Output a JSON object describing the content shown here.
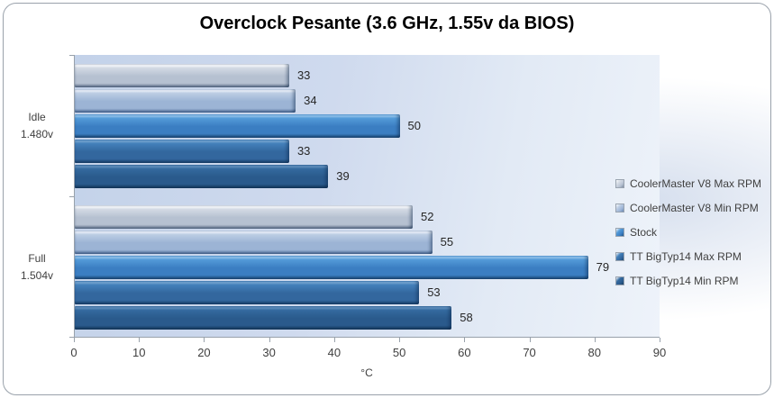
{
  "chart_data": {
    "type": "bar",
    "orientation": "horizontal",
    "title": "Overclock Pesante (3.6 GHz, 1.55v da BIOS)",
    "xlabel": "°C",
    "xlim": [
      0,
      90
    ],
    "xticks": [
      0,
      10,
      20,
      30,
      40,
      50,
      60,
      70,
      80,
      90
    ],
    "grid": false,
    "legend_position": "right",
    "categories": [
      "Idle 1.480v",
      "Full 1.504v"
    ],
    "category_lines": [
      [
        "Idle",
        "1.480v"
      ],
      [
        "Full",
        "1.504v"
      ]
    ],
    "series": [
      {
        "name": "CoolerMaster V8 Max RPM",
        "values": [
          33,
          52
        ],
        "colors": {
          "highlight": "#f5f7fa",
          "light": "#d3dae4",
          "main": "#b6c1d1",
          "dark": "#7d8ba0"
        }
      },
      {
        "name": "CoolerMaster V8 Min RPM",
        "values": [
          34,
          55
        ],
        "colors": {
          "highlight": "#e8eef8",
          "light": "#bccde4",
          "main": "#9cb4d5",
          "dark": "#6684b0"
        }
      },
      {
        "name": "Stock",
        "values": [
          50,
          79
        ],
        "colors": {
          "highlight": "#92c2ea",
          "light": "#539ad8",
          "main": "#3b7ec2",
          "dark": "#235687"
        }
      },
      {
        "name": "TT BigTyp14 Max RPM",
        "values": [
          33,
          53
        ],
        "colors": {
          "highlight": "#74a3cf",
          "light": "#4380ba",
          "main": "#33679e",
          "dark": "#1f4b77"
        }
      },
      {
        "name": "TT BigTyp14 Min RPM",
        "values": [
          39,
          58
        ],
        "colors": {
          "highlight": "#6290bd",
          "light": "#346a9f",
          "main": "#2a5a8c",
          "dark": "#193f63"
        }
      }
    ]
  }
}
